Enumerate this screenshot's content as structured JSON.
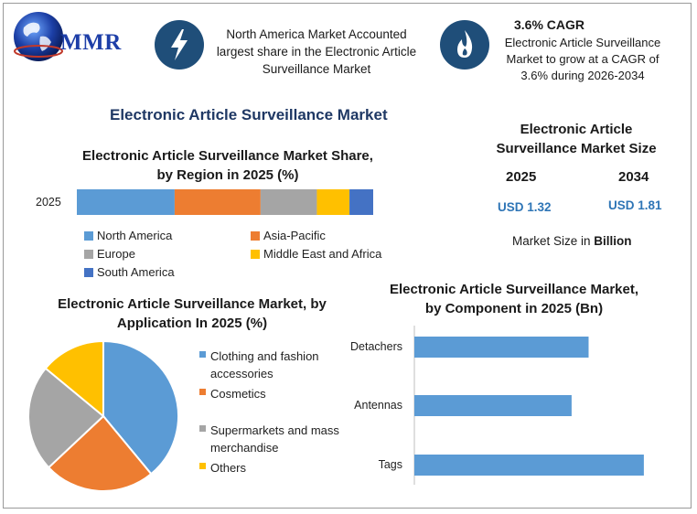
{
  "logo": {
    "text": "MMR"
  },
  "highlights": [
    {
      "icon": "lightning-icon",
      "text": "North America Market Accounted largest share in the Electronic Article Surveillance Market"
    },
    {
      "icon": "flame-icon",
      "title": "3.6% CAGR",
      "text": "Electronic Article Surveillance Market to grow at a CAGR of 3.6% during 2026-2034"
    }
  ],
  "main_title": "Electronic Article Surveillance Market",
  "market_size": {
    "title": "Electronic Article Surveillance Market Size",
    "years": [
      "2025",
      "2034"
    ],
    "values": [
      "USD 1.32",
      "USD 1.81"
    ],
    "unit_prefix": "Market Size in ",
    "unit_bold": "Billion"
  },
  "colors": {
    "blue": "#5b9bd5",
    "orange": "#ed7d31",
    "gray": "#a5a5a5",
    "yellow": "#ffc000",
    "darkblue": "#4472c4",
    "navy": "#1f4e79"
  },
  "chart_data": [
    {
      "type": "bar",
      "orientation": "horizontal-stacked",
      "title": "Electronic Article Surveillance Market Share, by Region in 2025 (%)",
      "categories": [
        "2025"
      ],
      "series": [
        {
          "name": "North America",
          "values": [
            33
          ],
          "color": "#5b9bd5"
        },
        {
          "name": "Asia-Pacific",
          "values": [
            29
          ],
          "color": "#ed7d31"
        },
        {
          "name": "Europe",
          "values": [
            19
          ],
          "color": "#a5a5a5"
        },
        {
          "name": "Middle East and Africa",
          "values": [
            11
          ],
          "color": "#ffc000"
        },
        {
          "name": "South America",
          "values": [
            8
          ],
          "color": "#4472c4"
        }
      ]
    },
    {
      "type": "pie",
      "title": "Electronic Article Surveillance Market, by Application In 2025 (%)",
      "labels": [
        "Clothing and fashion accessories",
        "Cosmetics",
        "Supermarkets and mass merchandise",
        "Others"
      ],
      "values": [
        39,
        24,
        23,
        14
      ],
      "colors": [
        "#5b9bd5",
        "#ed7d31",
        "#a5a5a5",
        "#ffc000"
      ],
      "legend": "right"
    },
    {
      "type": "bar",
      "orientation": "horizontal",
      "title": "Electronic Article Surveillance Market, by Component in 2025 (Bn)",
      "categories": [
        "Detachers",
        "Antennas",
        "Tags"
      ],
      "values": [
        0.41,
        0.37,
        0.54
      ],
      "color": "#5b9bd5"
    }
  ]
}
